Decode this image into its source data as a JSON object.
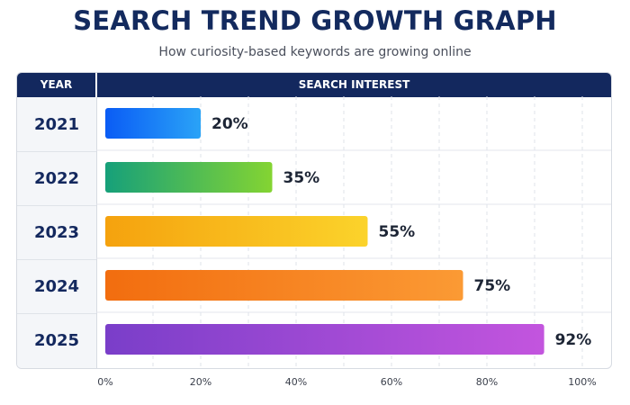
{
  "title": "SEARCH TREND GROWTH GRAPH",
  "subtitle": "How curiosity-based keywords are growing online",
  "table_header": {
    "year": "YEAR",
    "metric": "SEARCH INTEREST"
  },
  "colors": {
    "header_bg": "#13285e",
    "title": "#132a5e",
    "bar_gradients": [
      [
        "#0a5cf5",
        "#2aa3f7"
      ],
      [
        "#16a07a",
        "#84d432"
      ],
      [
        "#f5a20e",
        "#fbd32b"
      ],
      [
        "#f26d0f",
        "#fb9a34"
      ],
      [
        "#7a3ec9",
        "#c355de"
      ]
    ]
  },
  "chart_data": {
    "type": "bar",
    "orientation": "horizontal",
    "categories": [
      "2021",
      "2022",
      "2023",
      "2024",
      "2025"
    ],
    "values": [
      20,
      35,
      55,
      75,
      92
    ],
    "data_labels": [
      "20%",
      "35%",
      "55%",
      "75%",
      "92%"
    ],
    "title": "SEARCH TREND GROWTH GRAPH",
    "subtitle": "How curiosity-based keywords are growing online",
    "xlabel": "SEARCH INTEREST",
    "ylabel": "YEAR",
    "xlim": [
      0,
      100
    ],
    "xticks": [
      "0%",
      "20%",
      "40%",
      "60%",
      "80%",
      "100%"
    ],
    "grid": true
  }
}
